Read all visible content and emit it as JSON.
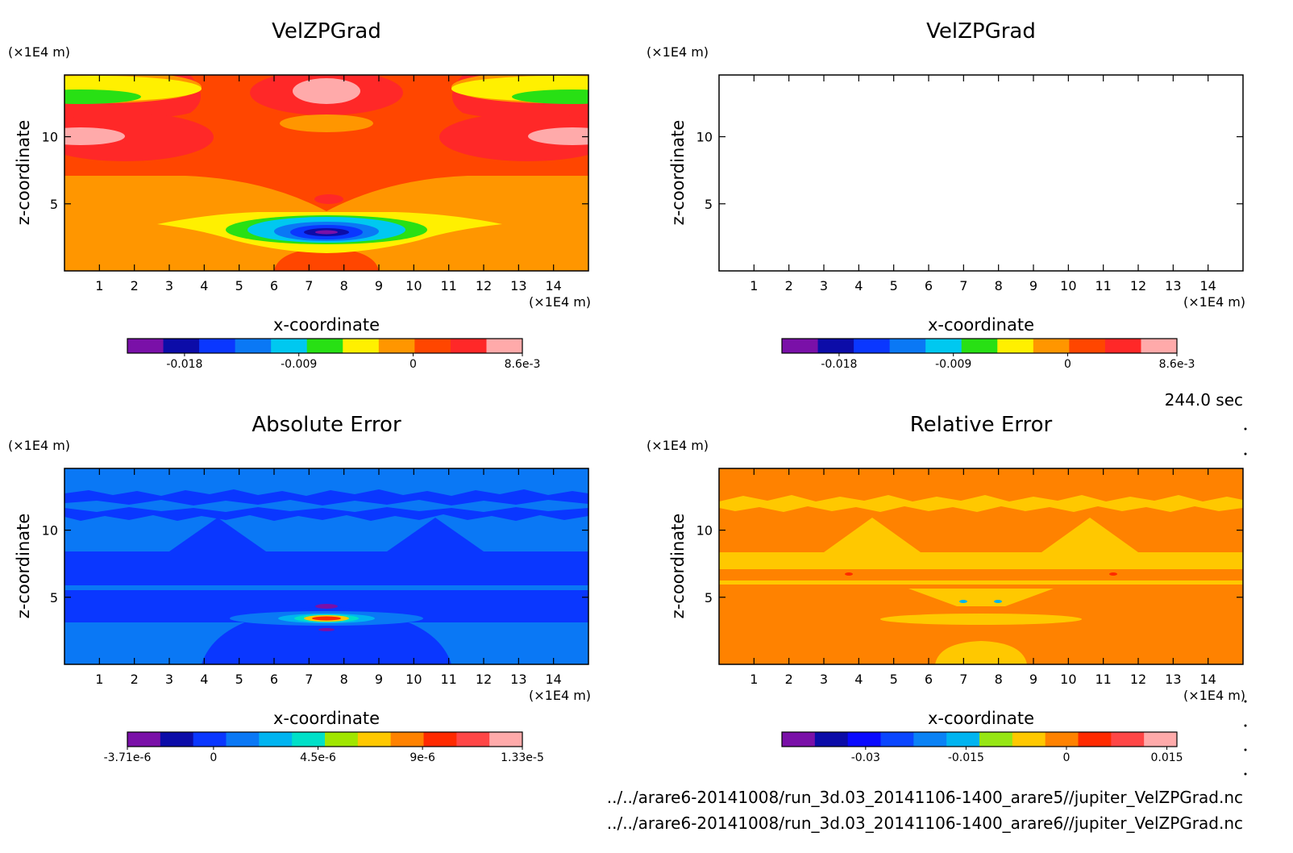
{
  "chart_data": [
    {
      "type": "contour",
      "title": "VelZPGrad",
      "xlabel": "x-coordinate",
      "ylabel": "z-coordinate",
      "x_unit": "(×1E4 m)",
      "y_unit": "(×1E4 m)",
      "xlim": [
        0,
        15
      ],
      "ylim": [
        0,
        14.6
      ],
      "x_ticks": [
        "1",
        "2",
        "3",
        "4",
        "5",
        "6",
        "7",
        "8",
        "9",
        "10",
        "11",
        "12",
        "13",
        "14"
      ],
      "y_ticks": [
        "5",
        "10"
      ],
      "colorbar_colors": [
        "#7a10a8",
        "#0c0ca8",
        "#0a37ff",
        "#0a78f5",
        "#00c8f0",
        "#28e014",
        "#fff000",
        "#ff9600",
        "#ff4600",
        "#ff2828",
        "#ffaaaa"
      ],
      "colorbar_labels": [
        "-0.018",
        "-0.009",
        "0",
        "8.6e-3"
      ],
      "colorbar_range": [
        -0.0225,
        0.0086
      ],
      "style": "velocity"
    },
    {
      "type": "contour",
      "title": "VelZPGrad",
      "xlabel": "x-coordinate",
      "ylabel": "z-coordinate",
      "x_unit": "(×1E4 m)",
      "y_unit": "(×1E4 m)",
      "xlim": [
        0,
        15
      ],
      "ylim": [
        0,
        14.6
      ],
      "x_ticks": [
        "1",
        "2",
        "3",
        "4",
        "5",
        "6",
        "7",
        "8",
        "9",
        "10",
        "11",
        "12",
        "13",
        "14"
      ],
      "y_ticks": [
        "5",
        "10"
      ],
      "colorbar_colors": [
        "#7a10a8",
        "#0c0ca8",
        "#0a37ff",
        "#0a78f5",
        "#00c8f0",
        "#28e014",
        "#fff000",
        "#ff9600",
        "#ff4600",
        "#ff2828",
        "#ffaaaa"
      ],
      "colorbar_labels": [
        "-0.018",
        "-0.009",
        "0",
        "8.6e-3"
      ],
      "colorbar_range": [
        -0.0225,
        0.0086
      ],
      "style": "velocity"
    },
    {
      "type": "contour",
      "title": "Absolute Error",
      "xlabel": "x-coordinate",
      "ylabel": "z-coordinate",
      "x_unit": "(×1E4 m)",
      "y_unit": "(×1E4 m)",
      "xlim": [
        0,
        15
      ],
      "ylim": [
        0,
        14.6
      ],
      "x_ticks": [
        "1",
        "2",
        "3",
        "4",
        "5",
        "6",
        "7",
        "8",
        "9",
        "10",
        "11",
        "12",
        "13",
        "14"
      ],
      "y_ticks": [
        "5",
        "10"
      ],
      "colorbar_colors": [
        "#7a10a8",
        "#0c0ca8",
        "#0a37ff",
        "#0a78f5",
        "#00b4f0",
        "#00e0c8",
        "#a0e600",
        "#ffc800",
        "#ff8200",
        "#ff2a00",
        "#ff4646",
        "#ffaaaa"
      ],
      "colorbar_labels": [
        "-3.71e-6",
        "0",
        "4.5e-6",
        "9e-6",
        "1.33e-5"
      ],
      "colorbar_range": [
        -3.71e-06,
        1.33e-05
      ],
      "style": "abs"
    },
    {
      "type": "contour",
      "title": "Relative Error",
      "xlabel": "x-coordinate",
      "ylabel": "z-coordinate",
      "x_unit": "(×1E4 m)",
      "y_unit": "(×1E4 m)",
      "xlim": [
        0,
        15
      ],
      "ylim": [
        0,
        14.6
      ],
      "x_ticks": [
        "1",
        "2",
        "3",
        "4",
        "5",
        "6",
        "7",
        "8",
        "9",
        "10",
        "11",
        "12",
        "13",
        "14"
      ],
      "y_ticks": [
        "5",
        "10"
      ],
      "colorbar_colors": [
        "#7a10a8",
        "#0c0ca8",
        "#0a0aff",
        "#0a46ff",
        "#0a82f5",
        "#00b4f0",
        "#96e614",
        "#ffc800",
        "#ff8200",
        "#ff2a00",
        "#ff4646",
        "#ffaaaa"
      ],
      "colorbar_labels": [
        "-0.03",
        "-0.015",
        "0",
        "0.015"
      ],
      "colorbar_range": [
        -0.0425,
        0.0165
      ],
      "style": "rel"
    }
  ],
  "time_label": "244.0 sec",
  "file_paths": [
    "../../arare6-20141008/run_3d.03_20141106-1400_arare5//jupiter_VelZPGrad.nc",
    "../../arare6-20141008/run_3d.03_20141106-1400_arare6//jupiter_VelZPGrad.nc"
  ]
}
